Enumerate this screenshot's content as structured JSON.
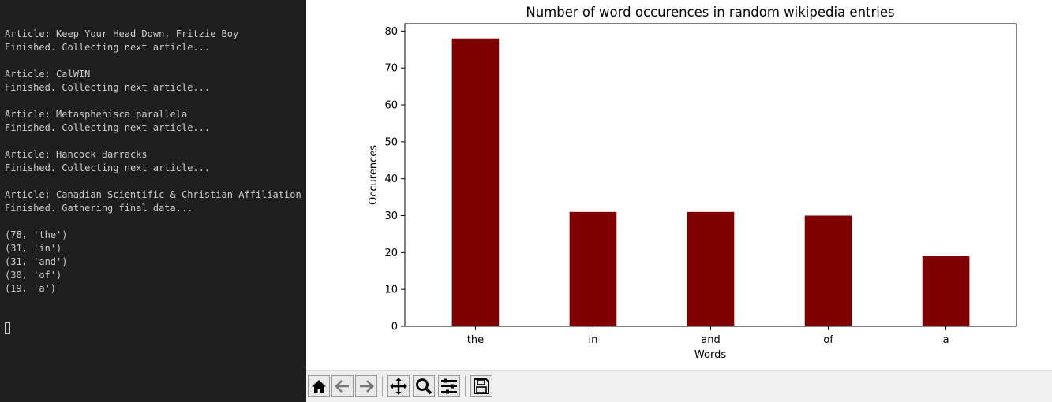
{
  "terminal": {
    "lines": [
      "Article: Keep Your Head Down, Fritzie Boy",
      "Finished. Collecting next article...",
      "",
      "Article: CalWIN",
      "Finished. Collecting next article...",
      "",
      "Article: Metasphenisca parallela",
      "Finished. Collecting next article...",
      "",
      "Article: Hancock Barracks",
      "Finished. Collecting next article...",
      "",
      "Article: Canadian Scientific & Christian Affiliation",
      "Finished. Gathering final data...",
      "",
      "(78, 'the')",
      "(31, 'in')",
      "(31, 'and')",
      "(30, 'of')",
      "(19, 'a')"
    ]
  },
  "chart_data": {
    "type": "bar",
    "title": "Number of word occurences in random wikipedia entries",
    "xlabel": "Words",
    "ylabel": "Occurences",
    "categories": [
      "the",
      "in",
      "and",
      "of",
      "a"
    ],
    "values": [
      78,
      31,
      31,
      30,
      19
    ],
    "ylim": [
      0,
      82
    ],
    "yticks": [
      0,
      10,
      20,
      30,
      40,
      50,
      60,
      70,
      80
    ],
    "bar_color": "#800000",
    "grid": false,
    "legend": null
  },
  "toolbar": {
    "buttons": [
      {
        "name": "home-button",
        "icon": "home-icon"
      },
      {
        "name": "back-button",
        "icon": "back-arrow-icon"
      },
      {
        "name": "forward-button",
        "icon": "forward-arrow-icon"
      },
      {
        "name": "pan-button",
        "icon": "move-icon"
      },
      {
        "name": "zoom-button",
        "icon": "zoom-icon"
      },
      {
        "name": "configure-subplots-button",
        "icon": "sliders-icon"
      },
      {
        "name": "save-button",
        "icon": "save-icon"
      }
    ]
  }
}
